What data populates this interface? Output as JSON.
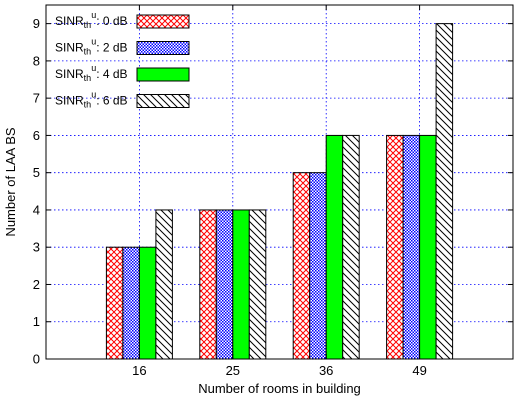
{
  "chart_data": {
    "type": "bar",
    "categories": [
      "16",
      "25",
      "36",
      "49"
    ],
    "series": [
      {
        "name": "0 dB",
        "values": [
          3,
          4,
          5,
          6
        ],
        "pattern": "crosshatch",
        "color": "#ff0000"
      },
      {
        "name": "2 dB",
        "values": [
          3,
          4,
          5,
          6
        ],
        "pattern": "checker",
        "color": "#0000ff"
      },
      {
        "name": "4 dB",
        "values": [
          3,
          4,
          6,
          6
        ],
        "pattern": "solid",
        "color": "#00ff00"
      },
      {
        "name": "6 dB",
        "values": [
          4,
          4,
          6,
          9
        ],
        "pattern": "diagonal",
        "color": "#000000"
      }
    ],
    "legend_prefix": "SINR",
    "legend_sub": "th",
    "legend_sup": "u",
    "xlabel": "Number of rooms in building",
    "ylabel": "Number of LAA BS",
    "ylim": [
      0,
      9.5
    ],
    "yticks": [
      0,
      1,
      2,
      3,
      4,
      5,
      6,
      7,
      8,
      9
    ],
    "grid": true,
    "legend_position": "top-left"
  }
}
